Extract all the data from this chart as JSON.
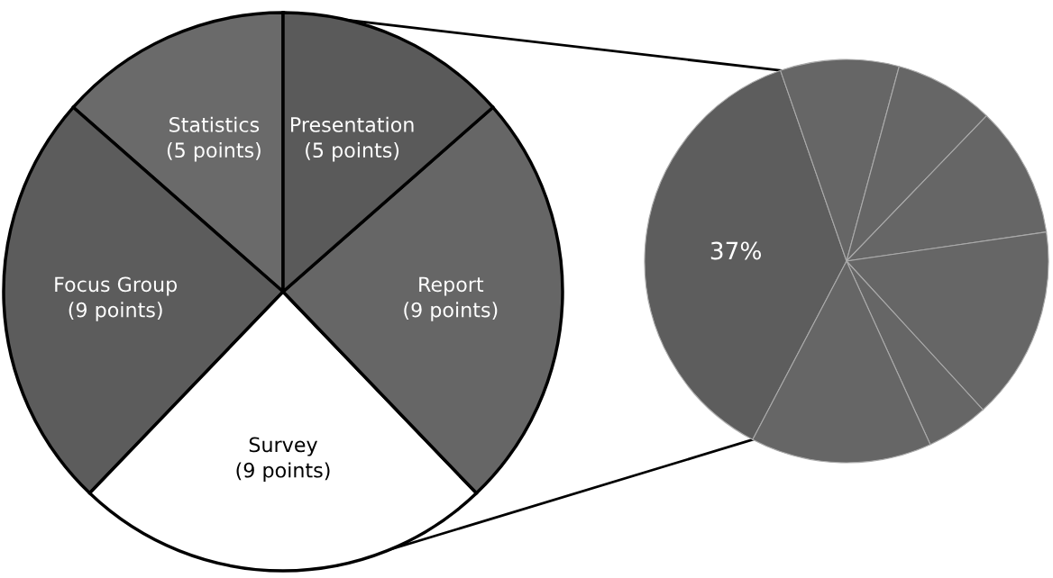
{
  "chart_data": [
    {
      "type": "pie",
      "categories": [
        "Statistics",
        "Focus Group",
        "Survey",
        "Report",
        "Presentation"
      ],
      "values": [
        5,
        9,
        9,
        9,
        5
      ],
      "colors": [
        "#6a6a6a",
        "#5c5c5c",
        "#ffffff",
        "#666666",
        "#5a5a5a"
      ],
      "value_labels": [
        "(5 points)",
        "(9 points)",
        "(9 points)",
        "(9 points)",
        "(5 points)"
      ]
    },
    {
      "type": "pie",
      "categories": [
        null,
        null,
        null,
        null,
        null,
        null,
        null
      ],
      "values": [
        37,
        9.5,
        8,
        10.5,
        15.5,
        5,
        14.5
      ],
      "colors": [
        "#5d5d5d",
        "#666666",
        "#666666",
        "#666666",
        "#666666",
        "#666666",
        "#666666"
      ],
      "value_labels": [
        "37%",
        null,
        null,
        null,
        null,
        null,
        null
      ]
    }
  ]
}
